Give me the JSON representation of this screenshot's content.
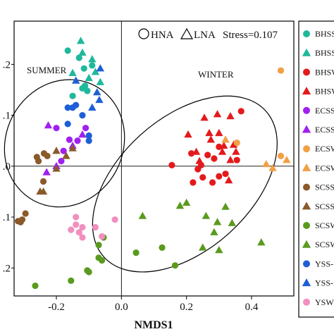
{
  "chart_data": {
    "type": "scatter",
    "title": "",
    "xlabel": "NMDS1",
    "ylabel": "",
    "xlim": [
      -0.33,
      0.53
    ],
    "ylim": [
      -0.255,
      0.285
    ],
    "xticks": [
      -0.2,
      0.0,
      0.2,
      0.4
    ],
    "xtick_labels": [
      "-0.2",
      "0.0",
      "0.2",
      "0.4"
    ],
    "yticks": [
      0.2,
      0.1,
      0.0,
      -0.1,
      -0.2
    ],
    "ytick_labels": [
      ".2",
      ".1",
      ".0",
      ".1",
      ".2"
    ],
    "reference_lines": {
      "x": 0,
      "y": 0
    },
    "grid": false,
    "legend_top": {
      "circle_label": "HNA",
      "triangle_label": "LNA",
      "stress": "Stress=0.107",
      "position": "top-right"
    },
    "group_labels": [
      "SUMMER",
      "WINTER"
    ],
    "ellipses": [
      {
        "name": "SUMMER",
        "cx": -0.175,
        "cy": 0.045,
        "rx": 0.2,
        "ry": 0.115,
        "angle_deg": -62
      },
      {
        "name": "WINTER",
        "cx": 0.195,
        "cy": -0.035,
        "rx": 0.335,
        "ry": 0.13,
        "angle_deg": -42
      }
    ],
    "series": [
      {
        "name": "BHSS",
        "marker": "circle",
        "color": "#1fb89b",
        "points": [
          [
            -0.165,
            0.227
          ],
          [
            -0.13,
            0.213
          ],
          [
            -0.115,
            0.192
          ],
          [
            -0.105,
            0.148
          ],
          [
            -0.12,
            0.153
          ],
          [
            -0.112,
            0.158
          ],
          [
            -0.15,
            0.138
          ],
          [
            -0.09,
            0.198
          ]
        ]
      },
      {
        "name": "BHSS",
        "marker": "triangle",
        "color": "#1fb89b",
        "points": [
          [
            -0.125,
            0.246
          ],
          [
            -0.12,
            0.223
          ],
          [
            -0.09,
            0.21
          ],
          [
            -0.08,
            0.185
          ],
          [
            -0.065,
            0.165
          ],
          [
            -0.15,
            0.183
          ],
          [
            -0.1,
            0.173
          ]
        ]
      },
      {
        "name": "BHSW",
        "marker": "circle",
        "color": "#e31a1c",
        "points": [
          [
            0.155,
            0.002
          ],
          [
            0.215,
            0.025
          ],
          [
            0.235,
            -0.006
          ],
          [
            0.245,
            0.002
          ],
          [
            0.285,
            0.015
          ],
          [
            0.3,
            0.038
          ],
          [
            0.32,
            -0.015
          ],
          [
            0.355,
            0.012
          ],
          [
            0.368,
            0.108
          ],
          [
            0.3,
            -0.02
          ],
          [
            0.28,
            -0.032
          ],
          [
            0.22,
            -0.032
          ],
          [
            0.25,
            -0.022
          ],
          [
            0.265,
            0.022
          ]
        ]
      },
      {
        "name": "BHSW",
        "marker": "triangle",
        "color": "#e31a1c",
        "points": [
          [
            0.255,
            0.095
          ],
          [
            0.295,
            0.102
          ],
          [
            0.335,
            0.098
          ],
          [
            0.27,
            0.065
          ],
          [
            0.3,
            0.065
          ],
          [
            0.315,
            0.04
          ],
          [
            0.345,
            0.042
          ],
          [
            0.352,
            0.028
          ],
          [
            0.23,
            0.028
          ],
          [
            0.275,
            0.052
          ],
          [
            0.205,
            0.062
          ],
          [
            0.31,
            0.028
          ],
          [
            0.335,
            0.012
          ],
          [
            0.33,
            -0.028
          ],
          [
            0.24,
            0.01
          ]
        ]
      },
      {
        "name": "ECSS",
        "marker": "circle",
        "color": "#a020f0",
        "points": [
          [
            -0.2,
            0.075
          ],
          [
            -0.11,
            0.075
          ],
          [
            -0.135,
            0.05
          ],
          [
            -0.178,
            0.03
          ],
          [
            -0.185,
            0.01
          ],
          [
            -0.16,
            0.052
          ]
        ]
      },
      {
        "name": "ECSS",
        "marker": "triangle",
        "color": "#a020f0",
        "points": [
          [
            -0.12,
            0.062
          ],
          [
            -0.225,
            0.08
          ],
          [
            -0.15,
            0.04
          ],
          [
            -0.2,
            0.0
          ],
          [
            -0.23,
            -0.012
          ]
        ]
      },
      {
        "name": "ECSW",
        "marker": "circle",
        "color": "#f2a044",
        "points": [
          [
            0.49,
            0.188
          ],
          [
            0.49,
            0.02
          ],
          [
            0.355,
            0.046
          ]
        ]
      },
      {
        "name": "ECSW",
        "marker": "triangle",
        "color": "#f2a044",
        "points": [
          [
            0.508,
            0.012
          ],
          [
            0.465,
            -0.004
          ],
          [
            0.445,
            0.004
          ],
          [
            0.32,
            0.052
          ]
        ]
      },
      {
        "name": "SCSS",
        "marker": "circle",
        "color": "#8b5a2b",
        "points": [
          [
            -0.228,
            0.02
          ],
          [
            -0.238,
            0.025
          ],
          [
            -0.26,
            0.018
          ],
          [
            -0.305,
            -0.105
          ],
          [
            -0.318,
            -0.108
          ],
          [
            -0.295,
            -0.093
          ],
          [
            -0.24,
            -0.03
          ],
          [
            -0.255,
            0.01
          ],
          [
            -0.31,
            -0.11
          ]
        ]
      },
      {
        "name": "SCSS",
        "marker": "triangle",
        "color": "#8b5a2b",
        "points": [
          [
            -0.2,
            -0.005
          ],
          [
            -0.24,
            -0.05
          ],
          [
            -0.25,
            -0.05
          ],
          [
            -0.2,
            0.03
          ],
          [
            -0.15,
            0.035
          ],
          [
            -0.17,
            0.02
          ]
        ]
      },
      {
        "name": "SCSW",
        "marker": "circle",
        "color": "#5a9a1e",
        "points": [
          [
            -0.07,
            -0.155
          ],
          [
            -0.07,
            -0.18
          ],
          [
            -0.06,
            -0.185
          ],
          [
            -0.155,
            -0.225
          ],
          [
            -0.105,
            -0.205
          ],
          [
            -0.1,
            -0.208
          ],
          [
            -0.265,
            -0.235
          ],
          [
            0.125,
            -0.16
          ],
          [
            0.165,
            -0.195
          ],
          [
            -0.055,
            -0.14
          ],
          [
            0.045,
            -0.17
          ]
        ]
      },
      {
        "name": "SCSW",
        "marker": "triangle",
        "color": "#5a9a1e",
        "points": [
          [
            0.065,
            -0.098
          ],
          [
            0.18,
            -0.078
          ],
          [
            0.2,
            -0.072
          ],
          [
            0.26,
            -0.098
          ],
          [
            0.32,
            -0.08
          ],
          [
            0.34,
            -0.112
          ],
          [
            0.285,
            -0.13
          ],
          [
            0.295,
            -0.11
          ],
          [
            0.3,
            -0.165
          ],
          [
            0.43,
            -0.15
          ],
          [
            0.25,
            -0.16
          ]
        ]
      },
      {
        "name": "YSS",
        "marker": "circle",
        "color": "#1f5fd6",
        "points": [
          [
            -0.14,
            0.12
          ],
          [
            -0.165,
            0.115
          ],
          [
            -0.15,
            0.115
          ],
          [
            -0.12,
            0.1
          ],
          [
            -0.165,
            0.083
          ],
          [
            -0.1,
            0.06
          ],
          [
            -0.1,
            0.05
          ]
        ]
      },
      {
        "name": "YSS",
        "marker": "triangle",
        "color": "#1f5fd6",
        "points": [
          [
            -0.075,
            0.145
          ],
          [
            -0.068,
            0.13
          ],
          [
            -0.09,
            0.115
          ],
          [
            -0.065,
            0.192
          ],
          [
            -0.14,
            0.168
          ]
        ]
      },
      {
        "name": "YSW",
        "marker": "circle",
        "color": "#f28fbf",
        "points": [
          [
            -0.13,
            -0.13
          ],
          [
            -0.14,
            -0.115
          ],
          [
            -0.12,
            -0.12
          ],
          [
            -0.08,
            -0.12
          ],
          [
            -0.02,
            -0.105
          ],
          [
            -0.06,
            -0.138
          ],
          [
            -0.155,
            -0.125
          ],
          [
            -0.14,
            -0.1
          ],
          [
            -0.12,
            -0.14
          ]
        ]
      }
    ],
    "legend": [
      {
        "label": "BHSS",
        "marker": "circle",
        "color": "#1fb89b"
      },
      {
        "label": "BHSS",
        "marker": "triangle",
        "color": "#1fb89b"
      },
      {
        "label": "BHSW",
        "marker": "circle",
        "color": "#e31a1c"
      },
      {
        "label": "BHSW",
        "marker": "triangle",
        "color": "#e31a1c"
      },
      {
        "label": "ECSS",
        "marker": "circle",
        "color": "#a020f0"
      },
      {
        "label": "ECSS",
        "marker": "triangle",
        "color": "#a020f0"
      },
      {
        "label": "ECSW",
        "marker": "circle",
        "color": "#f2a044"
      },
      {
        "label": "ECSW",
        "marker": "triangle",
        "color": "#f2a044"
      },
      {
        "label": "SCSS",
        "marker": "circle",
        "color": "#8b5a2b"
      },
      {
        "label": "SCSS",
        "marker": "triangle",
        "color": "#8b5a2b"
      },
      {
        "label": "SCSW",
        "marker": "circle",
        "color": "#5a9a1e"
      },
      {
        "label": "SCSW",
        "marker": "triangle",
        "color": "#5a9a1e"
      },
      {
        "label": "YSS-",
        "marker": "circle",
        "color": "#1f5fd6"
      },
      {
        "label": "YSS-",
        "marker": "triangle",
        "color": "#1f5fd6"
      },
      {
        "label": "YSW",
        "marker": "circle",
        "color": "#f28fbf"
      }
    ]
  }
}
